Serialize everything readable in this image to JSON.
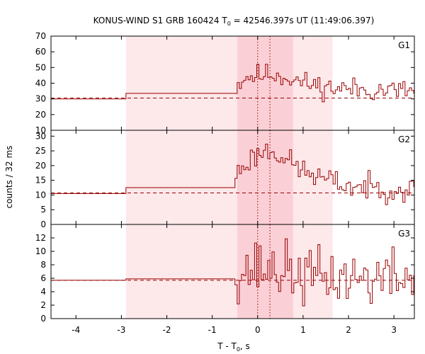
{
  "chart_data": {
    "type": "line",
    "title": "KONUS-WIND S1 GRB 160424 T",
    "title_sub": "0",
    "title_rest": " = 42546.397s UT (11:49:06.397)",
    "xlabel": "T - T",
    "xlabel_sub": "0",
    "xlabel_rest": ", s",
    "ylabel": "counts / 32 ms",
    "xlim": [
      -4.55,
      3.45
    ],
    "x_ticks": [
      -4,
      -3,
      -2,
      -1,
      0,
      1,
      2,
      3
    ],
    "x_tick_labels": [
      "-4",
      "-3",
      "-2",
      "-1",
      "0",
      "1",
      "2",
      "3"
    ],
    "shaded_outer": [
      -2.9,
      1.65
    ],
    "shaded_inner": [
      -0.45,
      0.78
    ],
    "vlines": [
      0.0,
      0.27
    ],
    "colors": {
      "line": "#990000",
      "shade_outer": "#fde8ea",
      "shade_inner": "#fad0d6"
    },
    "panels": [
      {
        "name": "G1",
        "ylim": [
          10,
          70
        ],
        "y_ticks": [
          10,
          20,
          30,
          40,
          50,
          60,
          70
        ],
        "background": 30.5,
        "steps": [
          [
            -4.55,
            30.0
          ],
          [
            -2.9,
            30.0
          ],
          [
            -2.9,
            33.5
          ],
          [
            -0.5,
            33.5
          ]
        ],
        "burst_start": -0.5,
        "burst_end": 3.45,
        "seed": 11,
        "burst_profile": [
          [
            -0.5,
            38
          ],
          [
            -0.3,
            44
          ],
          [
            0.0,
            45
          ],
          [
            0.3,
            46
          ],
          [
            0.6,
            44
          ],
          [
            1.0,
            40
          ],
          [
            1.6,
            37
          ],
          [
            2.2,
            36
          ],
          [
            3.45,
            35
          ]
        ],
        "noise": 5.5
      },
      {
        "name": "G2",
        "ylim": [
          0,
          32
        ],
        "y_ticks": [
          0,
          5,
          10,
          15,
          20,
          25,
          30
        ],
        "background": 10.7,
        "steps": [
          [
            -4.55,
            10.5
          ],
          [
            -2.9,
            10.5
          ],
          [
            -2.9,
            12.5
          ],
          [
            -0.5,
            12.5
          ]
        ],
        "burst_start": -0.5,
        "burst_end": 3.45,
        "seed": 23,
        "burst_profile": [
          [
            -0.5,
            17
          ],
          [
            -0.2,
            22
          ],
          [
            0.1,
            25
          ],
          [
            0.35,
            25
          ],
          [
            0.7,
            21
          ],
          [
            1.0,
            18
          ],
          [
            1.5,
            15
          ],
          [
            2.0,
            13
          ],
          [
            3.45,
            11.5
          ]
        ],
        "noise": 3.2
      },
      {
        "name": "G3",
        "ylim": [
          0,
          14
        ],
        "y_ticks": [
          0,
          2,
          4,
          6,
          8,
          10,
          12
        ],
        "background": 5.7,
        "steps": [
          [
            -4.55,
            5.7
          ],
          [
            -2.9,
            5.7
          ],
          [
            -2.9,
            5.9
          ],
          [
            -0.5,
            5.9
          ]
        ],
        "burst_start": -0.5,
        "burst_end": 3.45,
        "seed": 37,
        "burst_profile": [
          [
            -0.5,
            7
          ],
          [
            0.0,
            7.5
          ],
          [
            0.5,
            7.2
          ],
          [
            1.0,
            6.3
          ],
          [
            2.0,
            6.0
          ],
          [
            3.45,
            6.0
          ]
        ],
        "noise": 3.3
      }
    ]
  }
}
